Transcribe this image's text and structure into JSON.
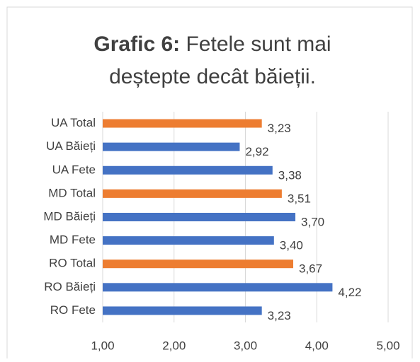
{
  "chart_data": {
    "type": "hbar",
    "title_prefix": "Grafic 6:",
    "title": [
      "Fetele sunt mai",
      "deștepte decât băieții."
    ],
    "categories": [
      "UA Total",
      "UA Băieți",
      "UA Fete",
      "MD Total",
      "MD Băieți",
      "MD Fete",
      "RO Total",
      "RO Băieți",
      "RO Fete"
    ],
    "values": [
      3.23,
      2.92,
      3.38,
      3.51,
      3.7,
      3.4,
      3.67,
      4.22,
      3.23
    ],
    "value_labels": [
      "3,23",
      "2,92",
      "3,38",
      "3,51",
      "3,70",
      "3,40",
      "3,67",
      "4,22",
      "3,23"
    ],
    "colors": [
      "#ed7d31",
      "#4472c4",
      "#4472c4",
      "#ed7d31",
      "#4472c4",
      "#4472c4",
      "#ed7d31",
      "#4472c4",
      "#4472c4"
    ],
    "xlim": [
      1,
      5
    ],
    "xticks": [
      {
        "value": 1,
        "label": "1,00"
      },
      {
        "value": 2,
        "label": "2,00"
      },
      {
        "value": 3,
        "label": "3,00"
      },
      {
        "value": 4,
        "label": "4,00"
      },
      {
        "value": 5,
        "label": "5,00"
      }
    ],
    "grid": true
  }
}
